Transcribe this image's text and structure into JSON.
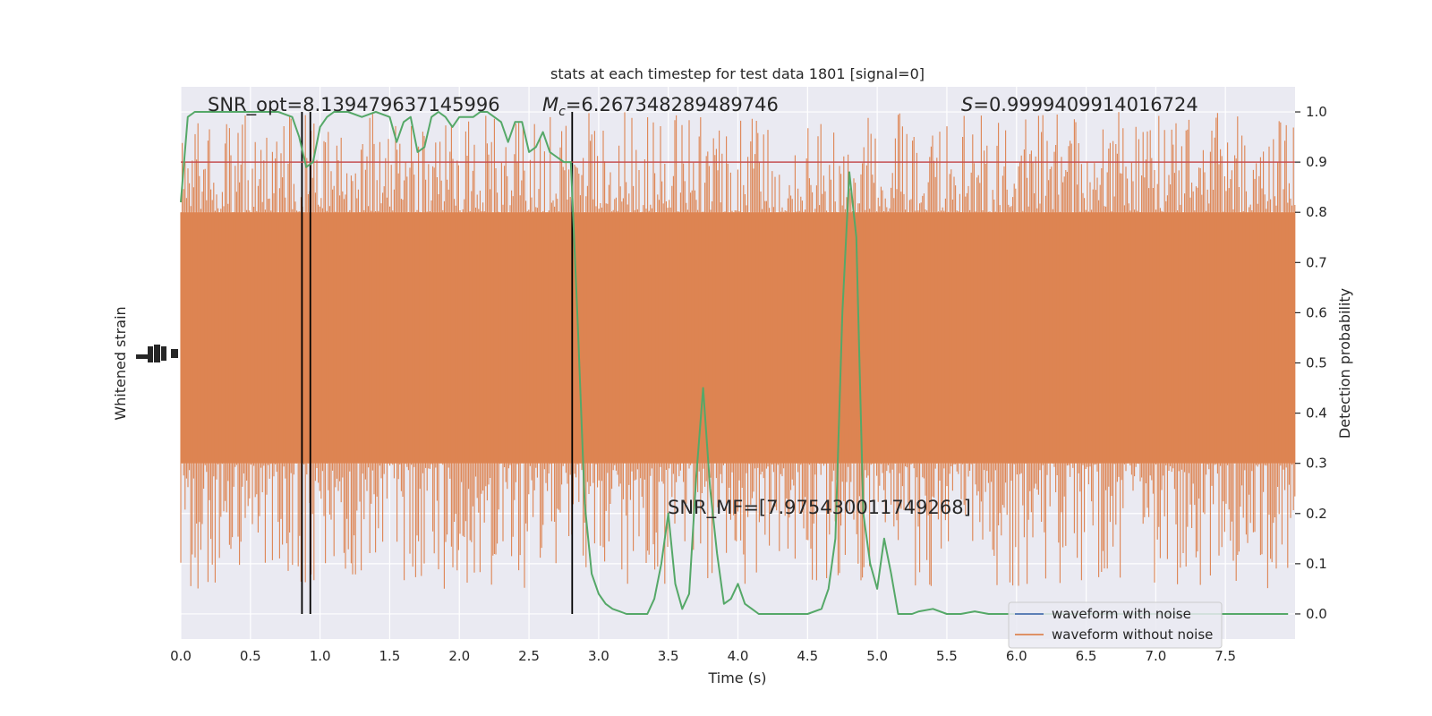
{
  "chart_data": {
    "type": "line",
    "title": "stats at each timestep for test data 1801 [signal=0]",
    "xlabel": "Time (s)",
    "ylabel_left": "Whitened strain",
    "ylabel_right": "Detection probability",
    "xlim": [
      0.0,
      8.0
    ],
    "ylim_right": [
      -0.05,
      1.05
    ],
    "grid": true,
    "x_ticks": [
      "0.0",
      "0.5",
      "1.0",
      "1.5",
      "2.0",
      "2.5",
      "3.0",
      "3.5",
      "4.0",
      "4.5",
      "5.0",
      "5.5",
      "6.0",
      "6.5",
      "7.0",
      "7.5"
    ],
    "right_ticks": [
      "0.0",
      "0.1",
      "0.2",
      "0.3",
      "0.4",
      "0.5",
      "0.6",
      "0.7",
      "0.8",
      "0.9",
      "1.0"
    ],
    "annotations": {
      "snr_opt_label": "SNR_opt=8.139479637145996",
      "mc_symbol": "M",
      "mc_sub": "c",
      "mc_value": "=6.267348289489746",
      "s_symbol": "S",
      "s_value": "=0.9999409914016724",
      "snr_mf_label": "SNR_MF=[7.975430011749268]"
    },
    "threshold": 0.9,
    "vertical_lines_x": [
      0.87,
      0.93,
      2.81
    ],
    "legend": {
      "placement": "lower-right",
      "entries": [
        {
          "label": "waveform with noise",
          "color": "#4c72b0"
        },
        {
          "label": "waveform without noise",
          "color": "#dd8452"
        }
      ]
    },
    "series": [
      {
        "name": "waveform with noise",
        "color": "#4c72b0",
        "style": "noise band",
        "band_level": [
          0.3,
          0.8
        ],
        "spike_range": [
          0.05,
          1.0
        ]
      },
      {
        "name": "Detection probability",
        "color": "#55a868",
        "x": [
          0.0,
          0.05,
          0.1,
          0.15,
          0.2,
          0.3,
          0.4,
          0.5,
          0.6,
          0.7,
          0.8,
          0.85,
          0.9,
          0.95,
          1.0,
          1.05,
          1.1,
          1.2,
          1.3,
          1.4,
          1.5,
          1.55,
          1.6,
          1.65,
          1.7,
          1.75,
          1.8,
          1.85,
          1.9,
          1.95,
          2.0,
          2.1,
          2.15,
          2.2,
          2.25,
          2.3,
          2.35,
          2.4,
          2.45,
          2.5,
          2.55,
          2.6,
          2.65,
          2.7,
          2.75,
          2.8,
          2.85,
          2.9,
          2.95,
          3.0,
          3.05,
          3.1,
          3.15,
          3.2,
          3.25,
          3.3,
          3.35,
          3.4,
          3.45,
          3.5,
          3.55,
          3.6,
          3.65,
          3.7,
          3.75,
          3.8,
          3.85,
          3.9,
          3.95,
          4.0,
          4.05,
          4.1,
          4.15,
          4.2,
          4.3,
          4.4,
          4.5,
          4.6,
          4.65,
          4.7,
          4.75,
          4.8,
          4.85,
          4.9,
          4.95,
          5.0,
          5.05,
          5.1,
          5.15,
          5.2,
          5.25,
          5.3,
          5.4,
          5.5,
          5.6,
          5.7,
          5.8,
          5.9,
          6.0,
          6.5,
          7.0,
          7.5,
          7.95
        ],
        "values": [
          0.82,
          0.99,
          1.0,
          1.0,
          1.0,
          1.0,
          1.0,
          1.0,
          1.0,
          1.0,
          0.99,
          0.95,
          0.89,
          0.9,
          0.97,
          0.99,
          1.0,
          1.0,
          0.99,
          1.0,
          0.99,
          0.94,
          0.98,
          0.99,
          0.92,
          0.93,
          0.99,
          1.0,
          0.99,
          0.97,
          0.99,
          0.99,
          1.0,
          1.0,
          0.99,
          0.98,
          0.94,
          0.98,
          0.98,
          0.92,
          0.93,
          0.96,
          0.92,
          0.91,
          0.9,
          0.9,
          0.58,
          0.22,
          0.08,
          0.04,
          0.02,
          0.01,
          0.005,
          0.0,
          0.0,
          0.0,
          0.0,
          0.03,
          0.1,
          0.2,
          0.06,
          0.01,
          0.04,
          0.27,
          0.45,
          0.25,
          0.12,
          0.02,
          0.03,
          0.06,
          0.02,
          0.01,
          0.0,
          0.0,
          0.0,
          0.0,
          0.0,
          0.01,
          0.05,
          0.15,
          0.6,
          0.88,
          0.75,
          0.2,
          0.1,
          0.05,
          0.15,
          0.08,
          0.0,
          0.0,
          0.0,
          0.005,
          0.01,
          0.0,
          0.0,
          0.005,
          0.0,
          0.0,
          0.0,
          0.0,
          0.0,
          0.0,
          0.0
        ]
      },
      {
        "name": "threshold",
        "color": "#c44e52",
        "values": [
          0.9
        ]
      }
    ]
  },
  "colors": {
    "plot_bg": "#eaeaf2",
    "grid": "#ffffff",
    "noise": "#dd8452",
    "prob": "#55a868",
    "threshold": "#c44e52",
    "vline": "#000000"
  }
}
